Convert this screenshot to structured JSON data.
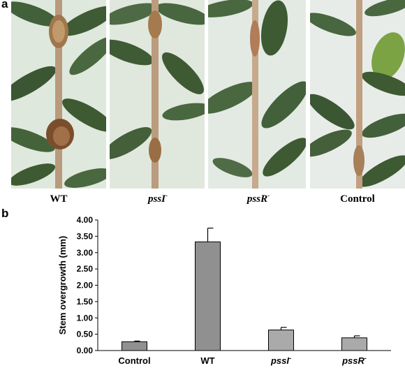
{
  "panel_a": {
    "letter": "a",
    "photos": [
      {
        "label": "WT",
        "superscript": ""
      },
      {
        "label": "pssI",
        "superscript": "-"
      },
      {
        "label": "pssR",
        "superscript": "-"
      },
      {
        "label": "Control",
        "superscript": ""
      }
    ]
  },
  "panel_b": {
    "letter": "b"
  },
  "colors": {
    "bar_dark": "#909090",
    "bar_light": "#aaaaaa",
    "leaf": "#3e5a2e",
    "stem": "#b99a7c",
    "background_photo": "#e4ece4"
  },
  "chart_data": {
    "type": "bar",
    "categories": [
      "Control",
      "WT",
      "pssI",
      "pssR"
    ],
    "category_superscripts": [
      "",
      "",
      "-",
      "-"
    ],
    "values": [
      0.27,
      3.33,
      0.63,
      0.39
    ],
    "errors": [
      0.02,
      0.42,
      0.08,
      0.06
    ],
    "ylabel": "Stem overgrowth (mm)",
    "xlabel": "",
    "ylim": [
      0,
      4.0
    ],
    "yticks": [
      "0.00",
      "0.50",
      "1.00",
      "1.50",
      "2.00",
      "2.50",
      "3.00",
      "3.50",
      "4.00"
    ],
    "grid": false
  }
}
